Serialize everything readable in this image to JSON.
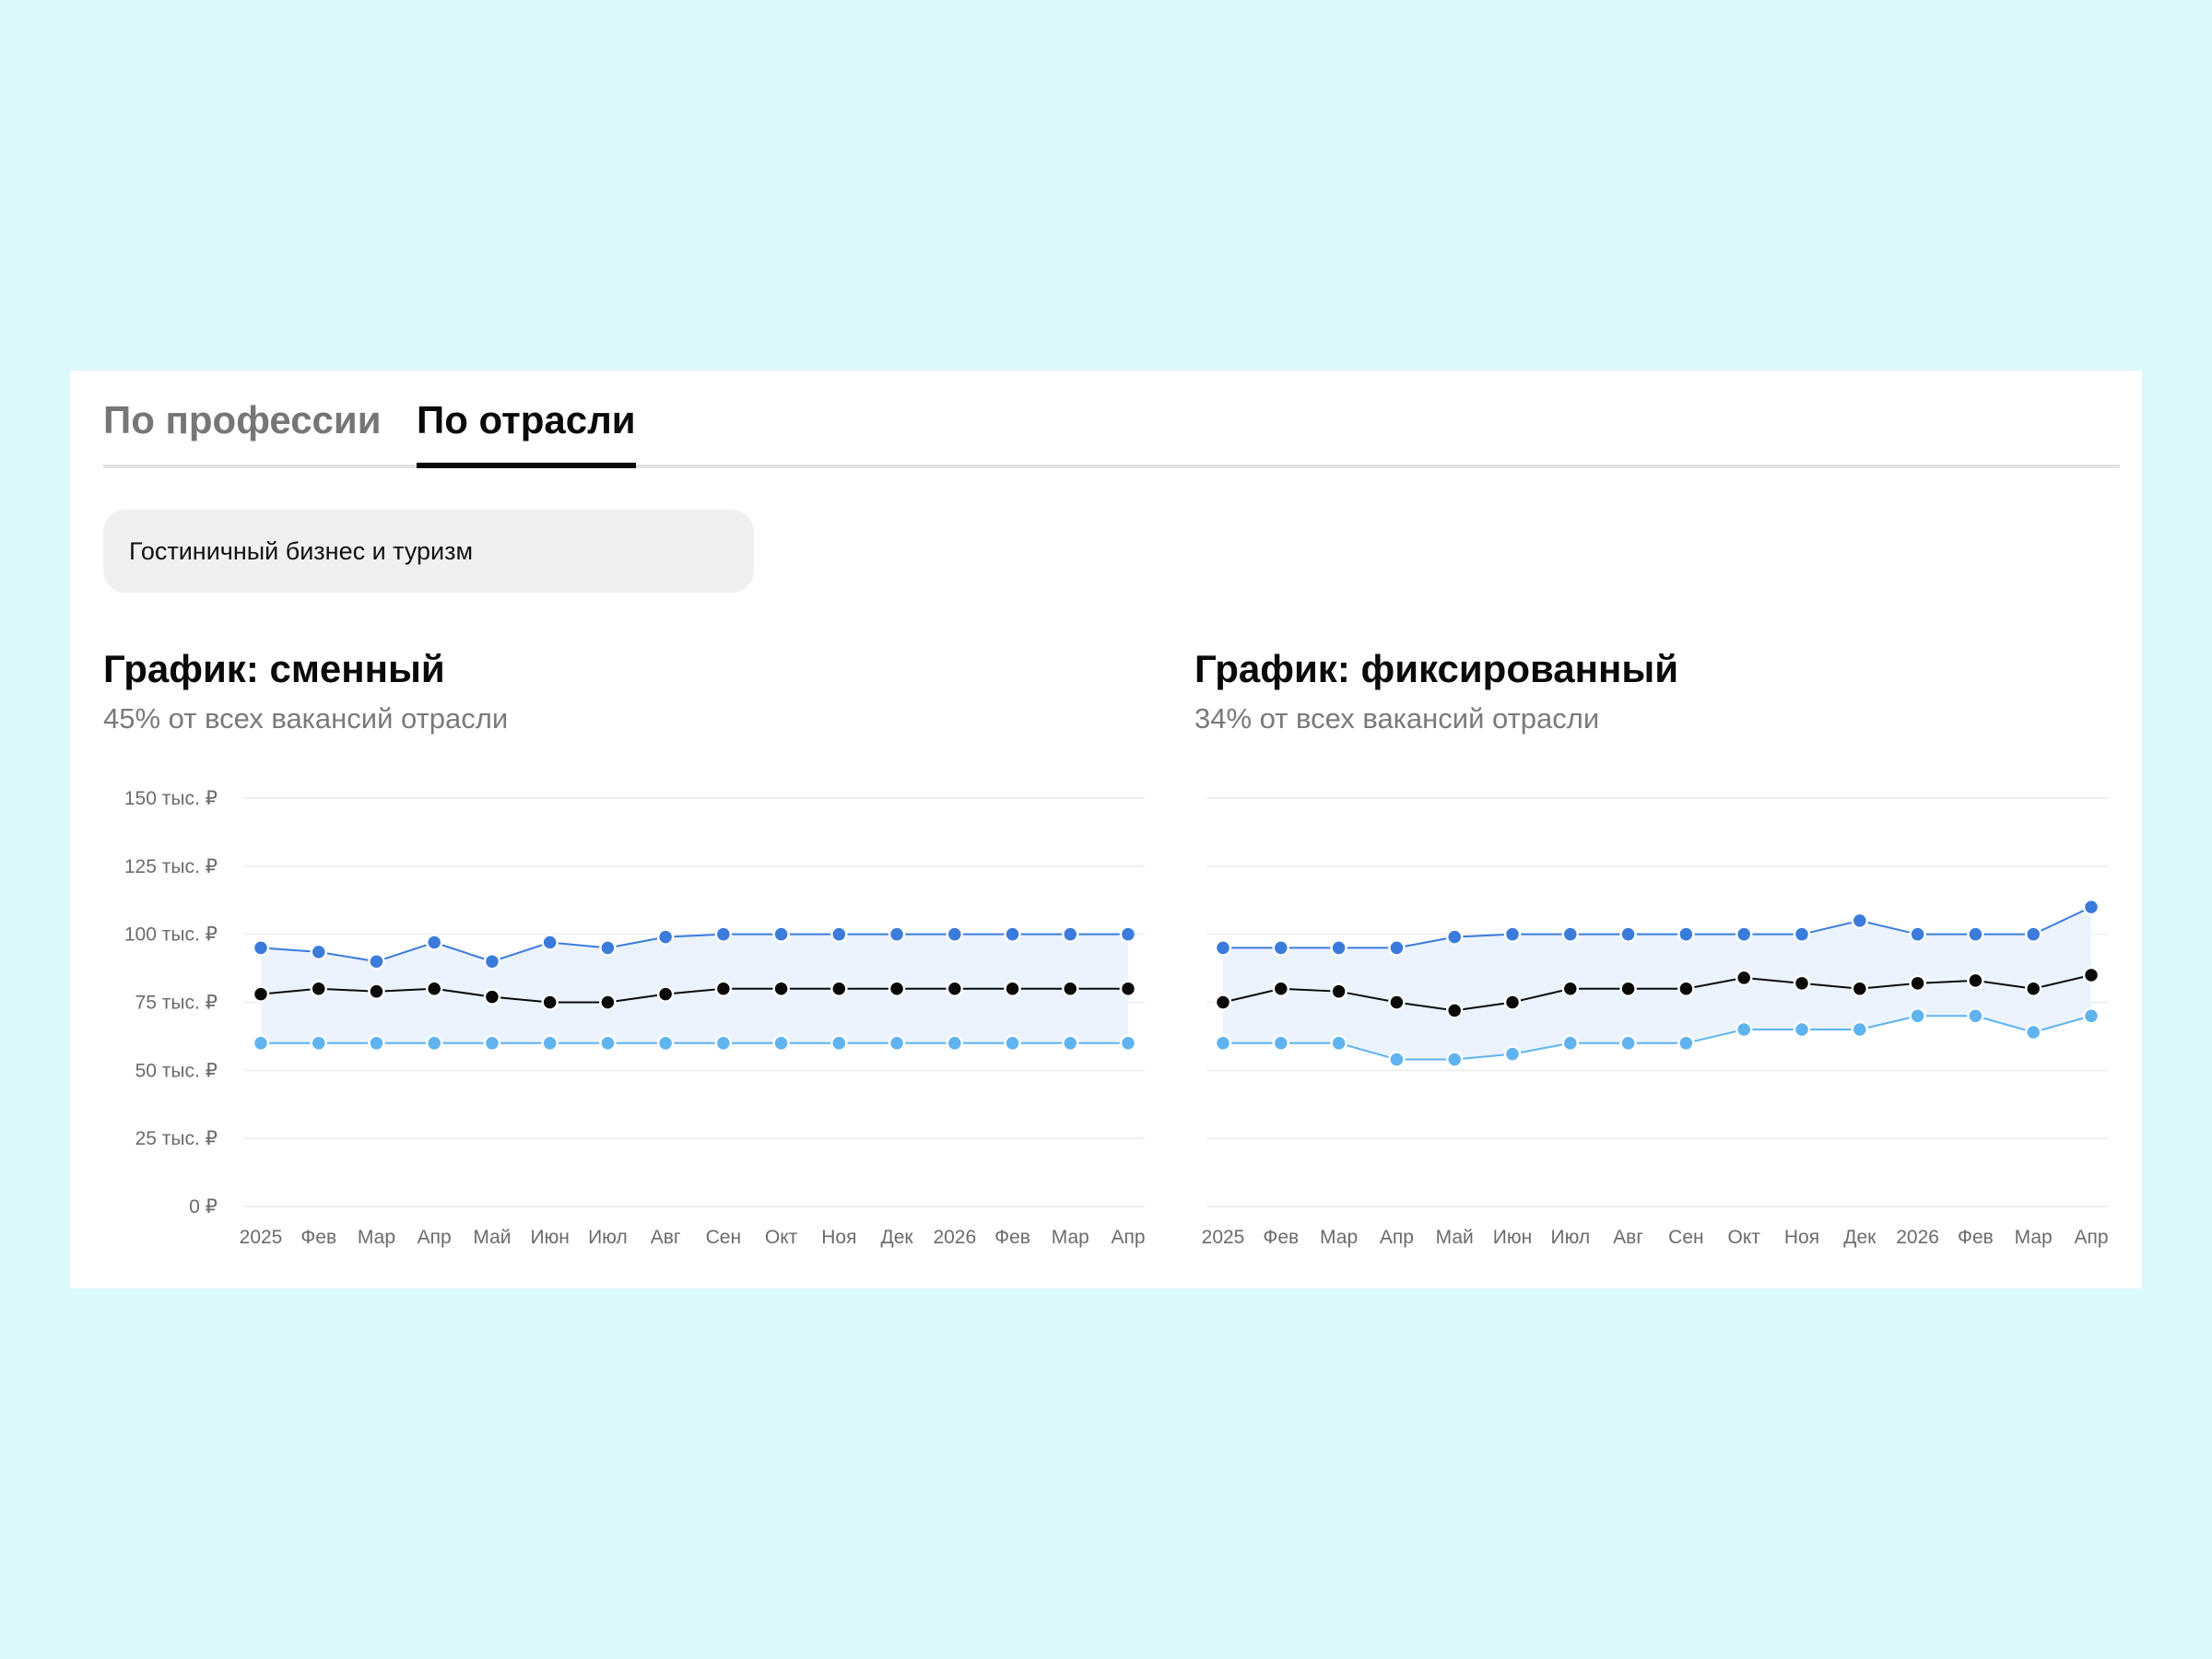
{
  "tabs": [
    {
      "label": "По профессии",
      "active": false
    },
    {
      "label": "По отрасли",
      "active": true
    }
  ],
  "industry_select": {
    "value": "Гостиничный бизнес и туризм"
  },
  "colors": {
    "background": "#dbf8fd",
    "max_line": "#3a7bdc",
    "median_line": "#0a0a0a",
    "min_line": "#5fb3ef",
    "band_fill": "#eaf3fe"
  },
  "chart_data": [
    {
      "type": "line",
      "title": "График: сменный",
      "subtitle": "45% от всех вакансий отрасли",
      "yticks": [
        "0 ₽",
        "25 тыс. ₽",
        "50 тыс. ₽",
        "75 тыс. ₽",
        "100 тыс. ₽",
        "125 тыс. ₽",
        "150 тыс. ₽"
      ],
      "ylim": [
        0,
        150000
      ],
      "grid": true,
      "categories": [
        "2025",
        "Фев",
        "Мар",
        "Апр",
        "Май",
        "Июн",
        "Июл",
        "Авг",
        "Сен",
        "Окт",
        "Ноя",
        "Дек",
        "2026",
        "Фев",
        "Мар",
        "Апр"
      ],
      "series": [
        {
          "values": [
            95000,
            93500,
            90000,
            97000,
            90000,
            97000,
            95000,
            99000,
            100000,
            100000,
            100000,
            100000,
            100000,
            100000,
            100000,
            100000
          ]
        },
        {
          "values": [
            78000,
            80000,
            79000,
            80000,
            77000,
            75000,
            75000,
            78000,
            80000,
            80000,
            80000,
            80000,
            80000,
            80000,
            80000,
            80000
          ]
        },
        {
          "values": [
            60000,
            60000,
            60000,
            60000,
            60000,
            60000,
            60000,
            60000,
            60000,
            60000,
            60000,
            60000,
            60000,
            60000,
            60000,
            60000
          ]
        }
      ]
    },
    {
      "type": "line",
      "title": "График: фиксированный",
      "subtitle": "34% от всех вакансий отрасли",
      "yticks": [],
      "ylim": [
        0,
        150000
      ],
      "grid": true,
      "categories": [
        "2025",
        "Фев",
        "Мар",
        "Апр",
        "Май",
        "Июн",
        "Июл",
        "Авг",
        "Сен",
        "Окт",
        "Ноя",
        "Дек",
        "2026",
        "Фев",
        "Мар",
        "Апр"
      ],
      "series": [
        {
          "values": [
            95000,
            95000,
            95000,
            95000,
            99000,
            100000,
            100000,
            100000,
            100000,
            100000,
            100000,
            105000,
            100000,
            100000,
            100000,
            110000
          ]
        },
        {
          "values": [
            75000,
            80000,
            79000,
            75000,
            72000,
            75000,
            80000,
            80000,
            80000,
            84000,
            82000,
            80000,
            82000,
            83000,
            80000,
            85000
          ]
        },
        {
          "values": [
            60000,
            60000,
            60000,
            54000,
            54000,
            56000,
            60000,
            60000,
            60000,
            65000,
            65000,
            65000,
            70000,
            70000,
            64000,
            70000
          ]
        }
      ]
    }
  ]
}
